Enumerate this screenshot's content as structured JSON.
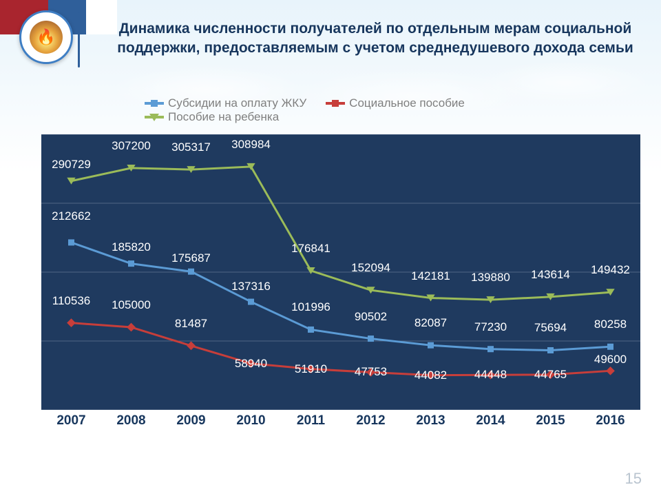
{
  "title": "Динамика численности получателей по отдельным мерам социальной поддержки, предоставляемым с учетом среднедушевого дохода семьи",
  "page_number": "15",
  "flag_colors": [
    "#a9252e",
    "#2f5f9a",
    "#ffffff"
  ],
  "xaxis_color": "#17365d",
  "legend": {
    "s1": "Субсидии на оплату ЖКУ",
    "s2": "Социальное пособие",
    "s3": "Пособие на ребенка"
  },
  "chart": {
    "type": "line",
    "plot_bg": "#1f3a5f",
    "grid_color": "#7a8ba3",
    "categories": [
      "2007",
      "2008",
      "2009",
      "2010",
      "2011",
      "2012",
      "2013",
      "2014",
      "2015",
      "2016"
    ],
    "ymin": 0,
    "ymax": 350000,
    "grid_y": [
      0,
      87500,
      175000,
      262500,
      350000
    ],
    "label_color": "#ffffff",
    "label_fontsize": 17,
    "line_width": 3,
    "marker_size": 9,
    "series": [
      {
        "key": "s1",
        "name": "Субсидии на оплату ЖКУ",
        "color": "#5b9bd5",
        "marker": "square",
        "values": [
          212662,
          185820,
          175687,
          137316,
          101996,
          90502,
          82087,
          77230,
          75694,
          80258
        ],
        "labels": [
          "212662",
          "185820",
          "175687",
          "137316",
          "101996",
          "90502",
          "82087",
          "77230",
          "75694",
          "80258"
        ],
        "label_dy": [
          -24,
          -10,
          -5,
          -8,
          -18,
          -18,
          -18,
          -18,
          -18,
          -18
        ]
      },
      {
        "key": "s2",
        "name": "Социальное пособие",
        "color": "#c73e3a",
        "marker": "diamond",
        "values": [
          110536,
          105000,
          81487,
          58940,
          51910,
          47753,
          44082,
          44448,
          44765,
          49600
        ],
        "labels": [
          "110536",
          "105000",
          "81487",
          "58940",
          "51910",
          "47753",
          "44082",
          "44448",
          "44765",
          "49600"
        ],
        "label_dy": [
          -18,
          -18,
          -18,
          14,
          14,
          14,
          14,
          14,
          14,
          -2
        ]
      },
      {
        "key": "s3",
        "name": "Пособие на ребенка",
        "color": "#9bbb59",
        "marker": "triangle",
        "values": [
          290729,
          307200,
          305317,
          308984,
          176841,
          152094,
          142181,
          139880,
          143614,
          149432
        ],
        "labels": [
          "290729",
          "307200",
          "305317",
          "308984",
          "176841",
          "152094",
          "142181",
          "139880",
          "143614",
          "149432"
        ],
        "label_dy": [
          -10,
          -18,
          -18,
          -18,
          -18,
          -18,
          -18,
          -18,
          -18,
          -18
        ]
      }
    ]
  }
}
